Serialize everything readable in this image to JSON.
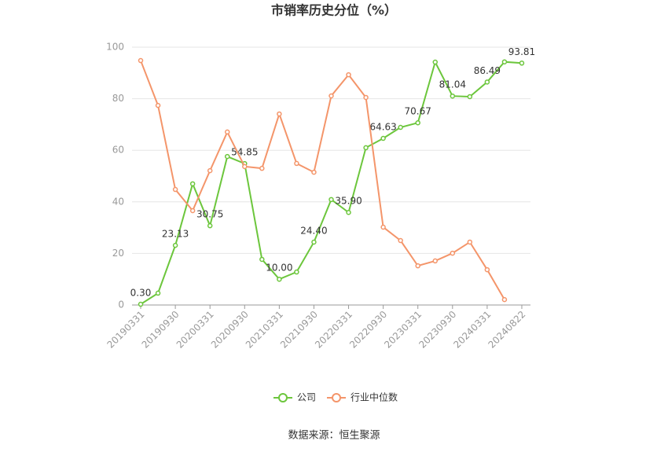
{
  "chart_data": {
    "type": "line",
    "title": "市销率历史分位（%）",
    "categories": [
      "20190331",
      null,
      "20190930",
      null,
      "20200331",
      null,
      "20200930",
      null,
      "20210331",
      null,
      "20210930",
      null,
      "20220331",
      null,
      "20220930",
      null,
      "20230331",
      null,
      "20230930",
      null,
      "20240331",
      null,
      "20240822"
    ],
    "series": [
      {
        "name": "公司",
        "color": "#6cc63c",
        "values": [
          0.3,
          4.6,
          23.13,
          47,
          30.75,
          57.6,
          54.85,
          17.7,
          10.0,
          12.8,
          24.4,
          40.9,
          35.9,
          61,
          64.63,
          68.9,
          70.67,
          94.2,
          81.04,
          80.8,
          86.49,
          94.3,
          93.81
        ],
        "value_labels": [
          "0.30",
          null,
          "23.13",
          null,
          "30.75",
          null,
          "54.85",
          null,
          "10.00",
          null,
          "24.40",
          null,
          "35.90",
          null,
          "64.63",
          null,
          "70.67",
          null,
          "81.04",
          null,
          "86.49",
          null,
          "93.81"
        ]
      },
      {
        "name": "行业中位数",
        "color": "#f4956a",
        "values": [
          94.8,
          77.4,
          44.8,
          36.6,
          52.1,
          67.1,
          53.7,
          53,
          74.1,
          54.9,
          51.5,
          81.1,
          89.3,
          80.5,
          30.2,
          25,
          15.2,
          17.1,
          20.1,
          24.4,
          13.7,
          2.1,
          null
        ]
      }
    ],
    "ylim": [
      0,
      100
    ],
    "yticks": [
      0,
      20,
      40,
      60,
      80,
      100
    ],
    "grid": true,
    "source": "数据来源：恒生聚源"
  }
}
